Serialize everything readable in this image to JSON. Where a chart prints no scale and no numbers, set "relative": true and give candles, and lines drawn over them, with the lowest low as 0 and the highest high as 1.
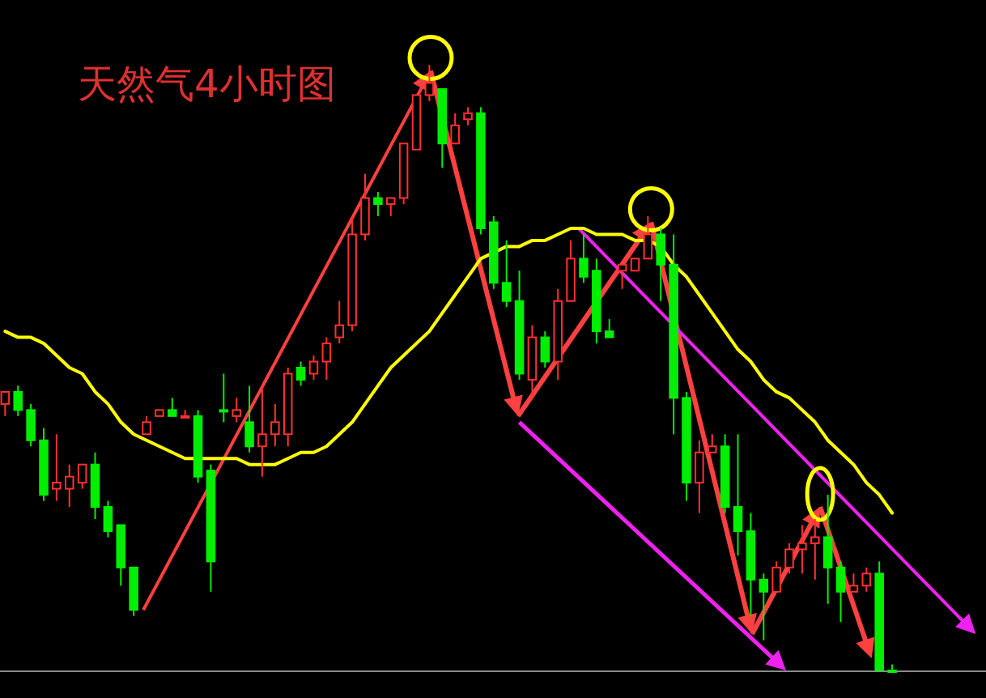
{
  "chart_data": {
    "type": "candlestick",
    "title": "天然气4小时图",
    "relative": true,
    "categories": [
      null,
      null,
      null,
      null,
      null,
      null,
      null,
      null,
      null,
      null,
      null,
      null,
      null,
      null,
      null,
      null,
      null,
      null,
      null,
      null,
      null,
      null,
      null,
      null,
      null,
      null,
      null,
      null,
      null,
      null,
      null,
      null,
      null,
      null,
      null,
      null,
      null,
      null,
      null,
      null,
      null,
      null,
      null,
      null,
      null,
      null,
      null,
      null,
      null,
      null,
      null,
      null,
      null,
      null,
      null,
      null,
      null,
      null,
      null,
      null,
      null,
      null,
      null,
      null,
      null,
      null,
      null,
      null,
      null,
      null
    ],
    "ohlc": [
      [
        0.44,
        0.46,
        0.42,
        0.46
      ],
      [
        0.46,
        0.47,
        0.42,
        0.43
      ],
      [
        0.43,
        0.44,
        0.37,
        0.38
      ],
      [
        0.38,
        0.4,
        0.28,
        0.29
      ],
      [
        0.3,
        0.39,
        0.28,
        0.31
      ],
      [
        0.3,
        0.34,
        0.27,
        0.32
      ],
      [
        0.31,
        0.34,
        0.3,
        0.34
      ],
      [
        0.34,
        0.36,
        0.25,
        0.27
      ],
      [
        0.27,
        0.28,
        0.22,
        0.23
      ],
      [
        0.24,
        0.24,
        0.14,
        0.17
      ],
      [
        0.17,
        0.17,
        0.09,
        0.1
      ],
      [
        0.39,
        0.42,
        0.39,
        0.41
      ],
      [
        0.42,
        0.43,
        0.42,
        0.43
      ],
      [
        0.43,
        0.45,
        0.42,
        0.42
      ],
      [
        0.42,
        0.43,
        0.42,
        0.42
      ],
      [
        0.42,
        0.43,
        0.31,
        0.32
      ],
      [
        0.33,
        0.34,
        0.13,
        0.18
      ],
      [
        0.43,
        0.49,
        0.41,
        0.43
      ],
      [
        0.42,
        0.45,
        0.41,
        0.43
      ],
      [
        0.41,
        0.47,
        0.36,
        0.37
      ],
      [
        0.37,
        0.47,
        0.32,
        0.39
      ],
      [
        0.39,
        0.44,
        0.37,
        0.41
      ],
      [
        0.39,
        0.5,
        0.37,
        0.49
      ],
      [
        0.5,
        0.51,
        0.47,
        0.48
      ],
      [
        0.49,
        0.52,
        0.48,
        0.51
      ],
      [
        0.51,
        0.55,
        0.48,
        0.54
      ],
      [
        0.55,
        0.61,
        0.54,
        0.57
      ],
      [
        0.57,
        0.75,
        0.56,
        0.72
      ],
      [
        0.72,
        0.82,
        0.71,
        0.78
      ],
      [
        0.78,
        0.79,
        0.75,
        0.77
      ],
      [
        0.77,
        0.78,
        0.75,
        0.78
      ],
      [
        0.78,
        0.87,
        0.77,
        0.87
      ],
      [
        0.86,
        0.95,
        0.86,
        0.95
      ],
      [
        0.95,
        1.0,
        0.94,
        0.97
      ],
      [
        0.96,
        0.96,
        0.83,
        0.87
      ],
      [
        0.87,
        0.92,
        0.87,
        0.9
      ],
      [
        0.91,
        0.93,
        0.9,
        0.92
      ],
      [
        0.92,
        0.93,
        0.72,
        0.73
      ],
      [
        0.74,
        0.75,
        0.63,
        0.64
      ],
      [
        0.64,
        0.71,
        0.6,
        0.61
      ],
      [
        0.61,
        0.66,
        0.48,
        0.49
      ],
      [
        0.48,
        0.57,
        0.45,
        0.55
      ],
      [
        0.55,
        0.56,
        0.5,
        0.51
      ],
      [
        0.51,
        0.63,
        0.48,
        0.61
      ],
      [
        0.61,
        0.71,
        0.61,
        0.68
      ],
      [
        0.68,
        0.72,
        0.64,
        0.65
      ],
      [
        0.66,
        0.68,
        0.54,
        0.56
      ],
      [
        0.56,
        0.58,
        0.55,
        0.55
      ],
      [
        0.66,
        0.67,
        0.63,
        0.67
      ],
      [
        0.66,
        0.68,
        0.66,
        0.68
      ],
      [
        0.68,
        0.75,
        0.68,
        0.72
      ],
      [
        0.72,
        0.73,
        0.61,
        0.67
      ],
      [
        0.67,
        0.72,
        0.39,
        0.45
      ],
      [
        0.45,
        0.46,
        0.28,
        0.31
      ],
      [
        0.31,
        0.38,
        0.26,
        0.36
      ],
      [
        0.36,
        0.39,
        0.36,
        0.37
      ],
      [
        0.37,
        0.39,
        0.26,
        0.27
      ],
      [
        0.27,
        0.39,
        0.19,
        0.23
      ],
      [
        0.23,
        0.26,
        0.09,
        0.15
      ],
      [
        0.15,
        0.16,
        0.05,
        0.13
      ],
      [
        0.13,
        0.18,
        0.13,
        0.17
      ],
      [
        0.17,
        0.21,
        0.16,
        0.2
      ],
      [
        0.2,
        0.24,
        0.16,
        0.21
      ],
      [
        0.21,
        0.25,
        0.15,
        0.22
      ],
      [
        0.22,
        0.29,
        0.11,
        0.17
      ],
      [
        0.17,
        0.18,
        0.08,
        0.13
      ],
      [
        0.13,
        0.16,
        0.13,
        0.14
      ],
      [
        0.14,
        0.17,
        0.13,
        0.16
      ],
      [
        0.16,
        0.18,
        0.0,
        0.0
      ],
      [
        0.0,
        0.01,
        0.0,
        0.0
      ]
    ],
    "colors": [
      "#ff3030",
      "#00ee00",
      "#00ee00",
      "#00ee00",
      "#ff3030",
      "#ff3030",
      "#ff3030",
      "#00ee00",
      "#00ee00",
      "#00ee00",
      "#00ee00",
      "#ff3030",
      "#ff3030",
      "#00ee00",
      "#ff3030",
      "#00ee00",
      "#00ee00",
      "#00ee00",
      "#ff3030",
      "#00ee00",
      "#ff3030",
      "#ff3030",
      "#ff3030",
      "#00ee00",
      "#ff3030",
      "#ff3030",
      "#ff3030",
      "#ff3030",
      "#ff3030",
      "#00ee00",
      "#ff3030",
      "#ff3030",
      "#ff3030",
      "#ff3030",
      "#00ee00",
      "#ff3030",
      "#ff3030",
      "#00ee00",
      "#00ee00",
      "#00ee00",
      "#00ee00",
      "#ff3030",
      "#00ee00",
      "#ff3030",
      "#ff3030",
      "#00ee00",
      "#00ee00",
      "#00ee00",
      "#ff3030",
      "#ff3030",
      "#ff3030",
      "#00ee00",
      "#00ee00",
      "#00ee00",
      "#ff3030",
      "#ff3030",
      "#00ee00",
      "#00ee00",
      "#00ee00",
      "#00ee00",
      "#ff3030",
      "#ff3030",
      "#ff3030",
      "#ff3030",
      "#00ee00",
      "#00ee00",
      "#ff3030",
      "#ff3030",
      "#00ee00",
      "#00ee00"
    ],
    "series": [
      {
        "type": "line",
        "color": "#ffff00",
        "values": [
          0.56,
          0.55,
          0.55,
          0.54,
          0.52,
          0.5,
          0.49,
          0.46,
          0.44,
          0.41,
          0.39,
          0.38,
          0.37,
          0.36,
          0.35,
          0.35,
          0.35,
          0.35,
          0.35,
          0.34,
          0.34,
          0.34,
          0.35,
          0.36,
          0.36,
          0.37,
          0.39,
          0.41,
          0.44,
          0.47,
          0.5,
          0.52,
          0.54,
          0.56,
          0.59,
          0.62,
          0.65,
          0.68,
          0.69,
          0.7,
          0.7,
          0.71,
          0.71,
          0.72,
          0.73,
          0.73,
          0.72,
          0.72,
          0.72,
          0.71,
          0.71,
          0.7,
          0.67,
          0.65,
          0.62,
          0.59,
          0.56,
          0.53,
          0.51,
          0.48,
          0.46,
          0.45,
          0.43,
          0.41,
          0.38,
          0.36,
          0.34,
          0.31,
          0.29,
          0.26
        ]
      }
    ]
  }
}
